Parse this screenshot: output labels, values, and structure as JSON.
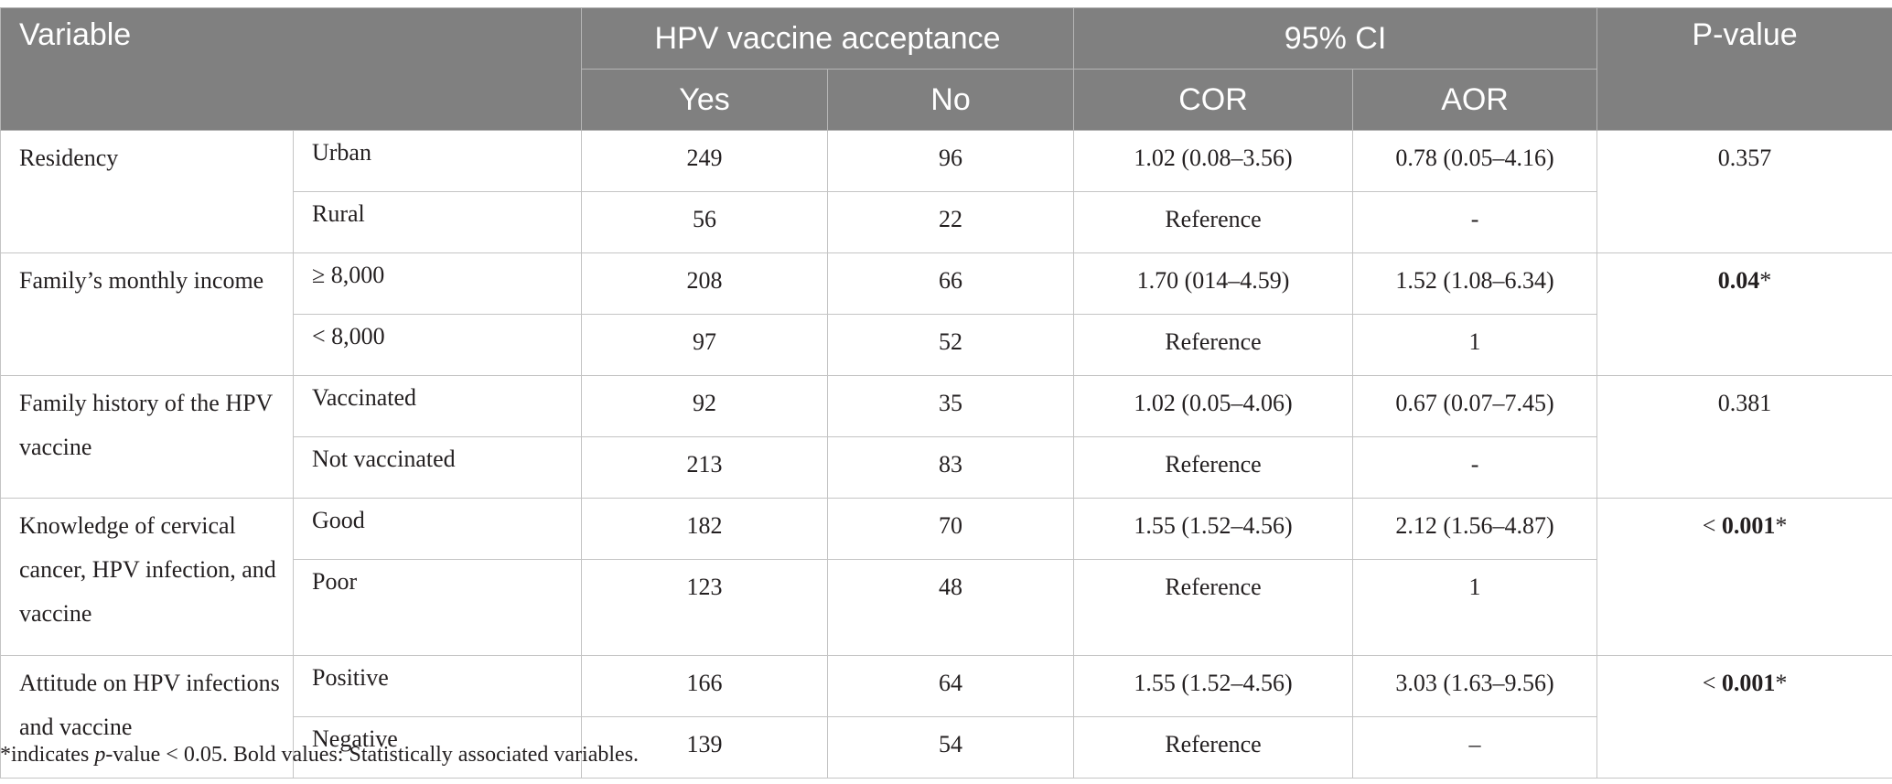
{
  "header": {
    "variable": "Variable",
    "acceptance": "HPV vaccine acceptance",
    "ci": "95% CI",
    "pvalue": "P-value",
    "yes": "Yes",
    "no": "No",
    "cor": "COR",
    "aor": "AOR"
  },
  "groups": [
    {
      "variable": "Residency",
      "pvalue_prefix": "",
      "pvalue_bold": "",
      "pvalue_plain": "0.357",
      "rows": [
        {
          "sub": "Urban",
          "yes": "249",
          "no": "96",
          "cor": "1.02 (0.08–3.56)",
          "aor": "0.78 (0.05–4.16)"
        },
        {
          "sub": "Rural",
          "yes": "56",
          "no": "22",
          "cor": "Reference",
          "aor": "-"
        }
      ]
    },
    {
      "variable": "Family’s monthly income",
      "pvalue_prefix": "",
      "pvalue_bold": "0.04",
      "pvalue_plain": "*",
      "rows": [
        {
          "sub": "≥ 8,000",
          "yes": "208",
          "no": "66",
          "cor": "1.70 (014–4.59)",
          "aor": "1.52 (1.08–6.34)"
        },
        {
          "sub": "< 8,000",
          "yes": "97",
          "no": "52",
          "cor": "Reference",
          "aor": "1"
        }
      ]
    },
    {
      "variable": "Family history of the HPV vaccine",
      "pvalue_prefix": "",
      "pvalue_bold": "",
      "pvalue_plain": "0.381",
      "rows": [
        {
          "sub": "Vaccinated",
          "yes": "92",
          "no": "35",
          "cor": "1.02 (0.05–4.06)",
          "aor": "0.67 (0.07–7.45)"
        },
        {
          "sub": "Not vaccinated",
          "yes": "213",
          "no": "83",
          "cor": "Reference",
          "aor": "-"
        }
      ]
    },
    {
      "variable": "Knowledge of cervical cancer, HPV infection, and vaccine",
      "pvalue_prefix": "< ",
      "pvalue_bold": "0.001",
      "pvalue_plain": "*",
      "rows": [
        {
          "sub": "Good",
          "yes": "182",
          "no": "70",
          "cor": "1.55 (1.52–4.56)",
          "aor": "2.12 (1.56–4.87)"
        },
        {
          "sub": "Poor",
          "yes": "123",
          "no": "48",
          "cor": "Reference",
          "aor": "1"
        }
      ]
    },
    {
      "variable": "Attitude on HPV infections and vaccine",
      "pvalue_prefix": "< ",
      "pvalue_bold": "0.001",
      "pvalue_plain": "*",
      "rows": [
        {
          "sub": "Positive",
          "yes": "166",
          "no": "64",
          "cor": "1.55 (1.52–4.56)",
          "aor": "3.03 (1.63–9.56)"
        },
        {
          "sub": "Negative",
          "yes": "139",
          "no": "54",
          "cor": "Reference",
          "aor": "–"
        }
      ]
    }
  ],
  "footnote": {
    "part1": "*indicates ",
    "italic": "p",
    "part2": "-value < 0.05. Bold values: Statistically associated variables."
  }
}
